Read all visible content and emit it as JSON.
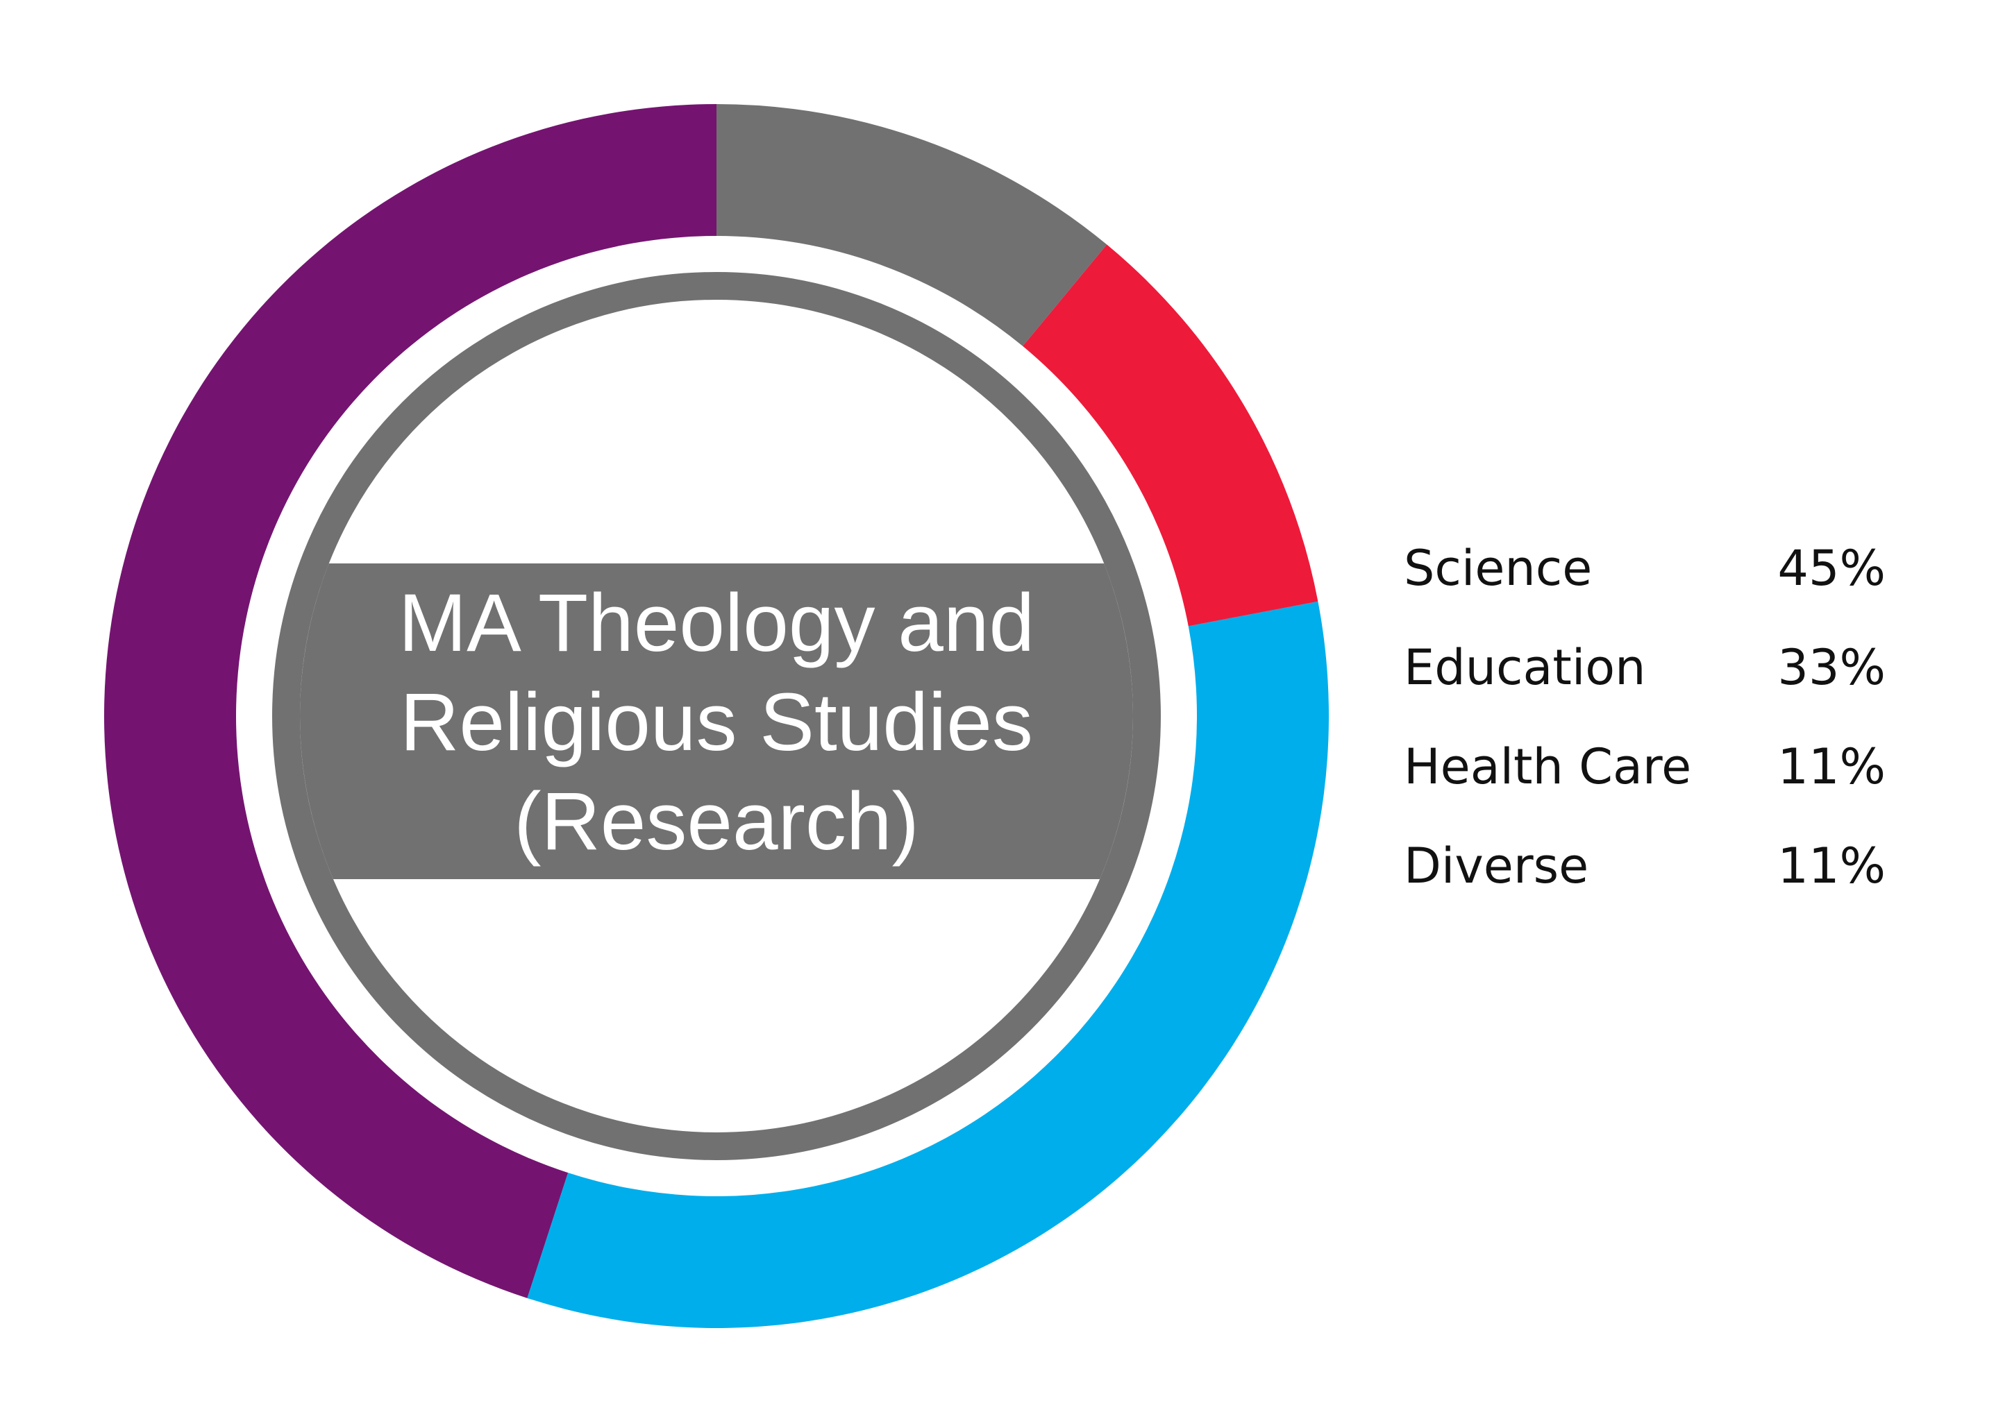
{
  "chart_data": {
    "type": "pie",
    "center_label": [
      "MA Theology and",
      "Religious Studies",
      "(Research)"
    ],
    "segments": [
      {
        "label": "Science",
        "value": 45,
        "value_label": "45%",
        "color": "#741470"
      },
      {
        "label": "Education",
        "value": 33,
        "value_label": "33%",
        "color": "#00aeeb"
      },
      {
        "label": "Health Care",
        "value": 11,
        "value_label": "11%",
        "color": "#ee1a3a"
      },
      {
        "label": "Diverse",
        "value": 11,
        "value_label": "11%",
        "color": "#717171"
      }
    ],
    "legend_position": "right"
  }
}
